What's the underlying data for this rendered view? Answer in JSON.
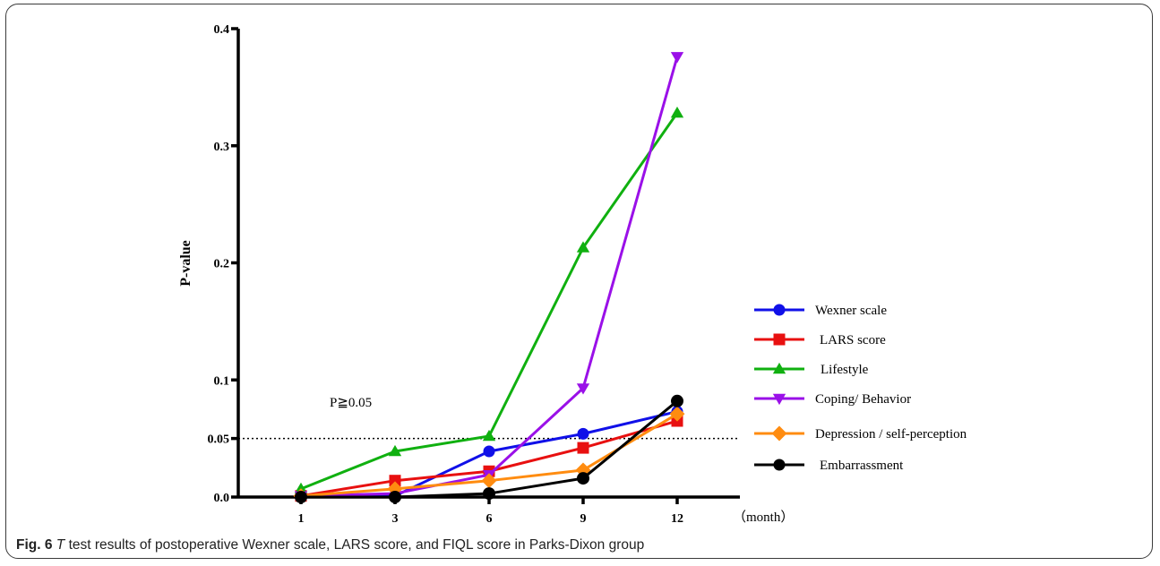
{
  "chart_data": {
    "type": "line",
    "title": "",
    "xlabel": "（month）",
    "ylabel": "P-value",
    "categories": [
      "1",
      "3",
      "6",
      "9",
      "12"
    ],
    "yticks": [
      "0.0",
      "0.05",
      "0.1",
      "0.2",
      "0.3",
      "0.4"
    ],
    "ytick_values": [
      0,
      0.05,
      0.1,
      0.2,
      0.3,
      0.4
    ],
    "ylim": [
      0,
      0.4
    ],
    "threshold": {
      "value": 0.05,
      "label": "P≧0.05"
    },
    "legend_position": "right",
    "series": [
      {
        "name": "Wexner scale",
        "color": "#1010e8",
        "marker": "circle",
        "values": [
          0.001,
          0.001,
          0.039,
          0.054,
          0.073
        ]
      },
      {
        "name": "LARS score",
        "color": "#e81010",
        "marker": "square",
        "values": [
          0.001,
          0.014,
          0.022,
          0.042,
          0.065
        ]
      },
      {
        "name": "Lifestyle",
        "color": "#10b010",
        "marker": "triangle-up",
        "values": [
          0.007,
          0.039,
          0.052,
          0.213,
          0.328
        ]
      },
      {
        "name": "Coping/ Behavior",
        "color": "#9a10e8",
        "marker": "triangle-down",
        "values": [
          0.001,
          0.003,
          0.019,
          0.093,
          0.376
        ]
      },
      {
        "name": "Depression / self-perception",
        "color": "#ff8c10",
        "marker": "diamond",
        "values": [
          0.001,
          0.007,
          0.014,
          0.023,
          0.071
        ]
      },
      {
        "name": "Embarrassment",
        "color": "#000000",
        "marker": "circle",
        "values": [
          0.0,
          0.0,
          0.003,
          0.016,
          0.082
        ]
      }
    ]
  },
  "caption": {
    "fig_label": "Fig. 6",
    "t_letter": "T",
    "text": " test results of postoperative Wexner scale, LARS score, and FIQL score in Parks-Dixon group"
  }
}
